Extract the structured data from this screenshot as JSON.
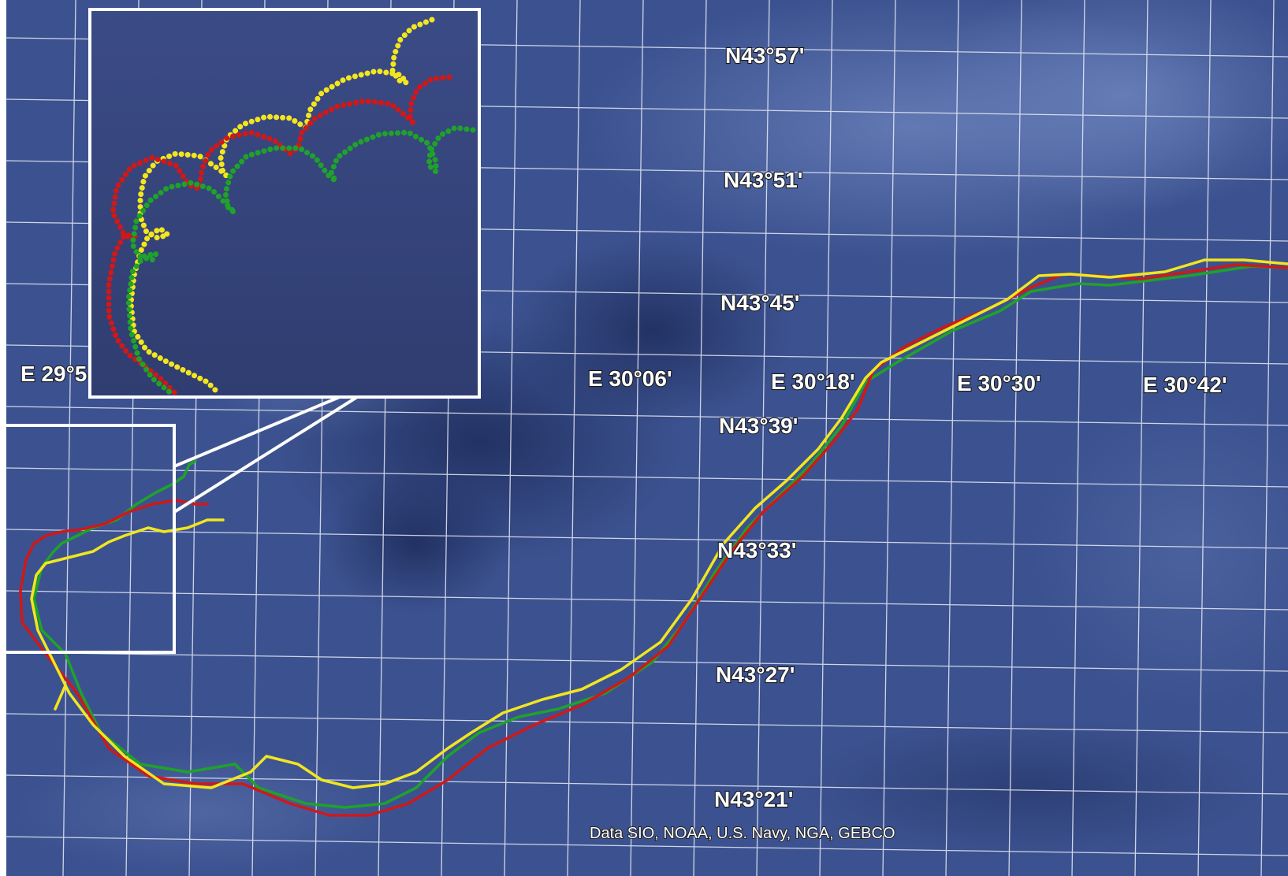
{
  "map": {
    "latitude_labels": [
      "N43°57'",
      "N43°51'",
      "N43°45'",
      "N43°39'",
      "N43°33'",
      "N43°27'",
      "N43°21'"
    ],
    "longitude_labels": [
      "E 29°5",
      "E 30°06'",
      "E 30°18'",
      "E 30°30'",
      "E 30°42'"
    ],
    "attribution": "Data SIO, NOAA, U.S. Navy, NGA, GEBCO",
    "colors": {
      "ocean": "#3c5290",
      "grid": "#e8ecf8",
      "track_red": "#d01818",
      "track_green": "#1fa22a",
      "track_yellow": "#f2e61e",
      "inset_frame": "#ffffff"
    },
    "tracks": [
      "red",
      "green",
      "yellow"
    ],
    "inset": {
      "description_of_content": "zoomed view of looping drift tracks"
    }
  }
}
